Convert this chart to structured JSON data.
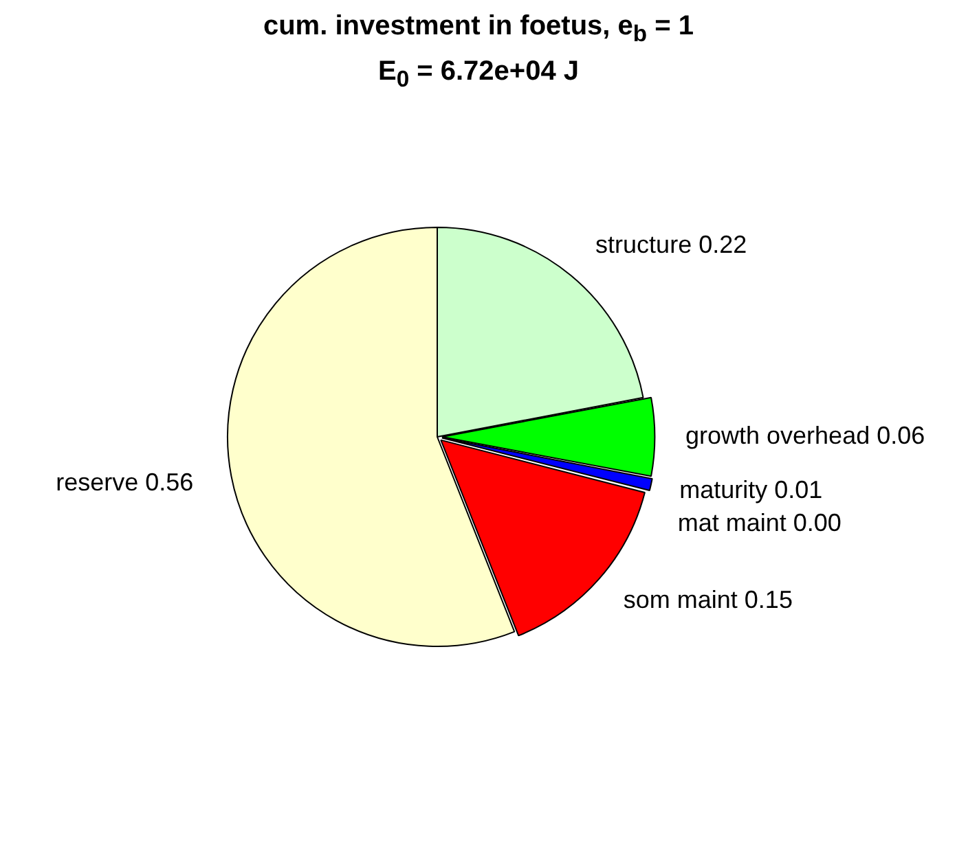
{
  "chart_data": {
    "type": "pie",
    "title": "cum. investment in foetus, e$_{b}$ = 1",
    "subtitle": "E$_{0}$ = 6.72e+04 J",
    "categories": [
      "structure",
      "growth overhead",
      "maturity",
      "mat maint",
      "som maint",
      "reserve"
    ],
    "values": [
      0.22,
      0.06,
      0.01,
      0.0,
      0.15,
      0.56
    ],
    "value_labels": [
      "0.22",
      "0.06",
      "0.01",
      "0.00",
      "0.15",
      "0.56"
    ],
    "colors": [
      "#ccffcc",
      "#00ff00",
      "#0000ff",
      "#000000",
      "#ff0000",
      "#ffffcc"
    ],
    "legend": false
  }
}
